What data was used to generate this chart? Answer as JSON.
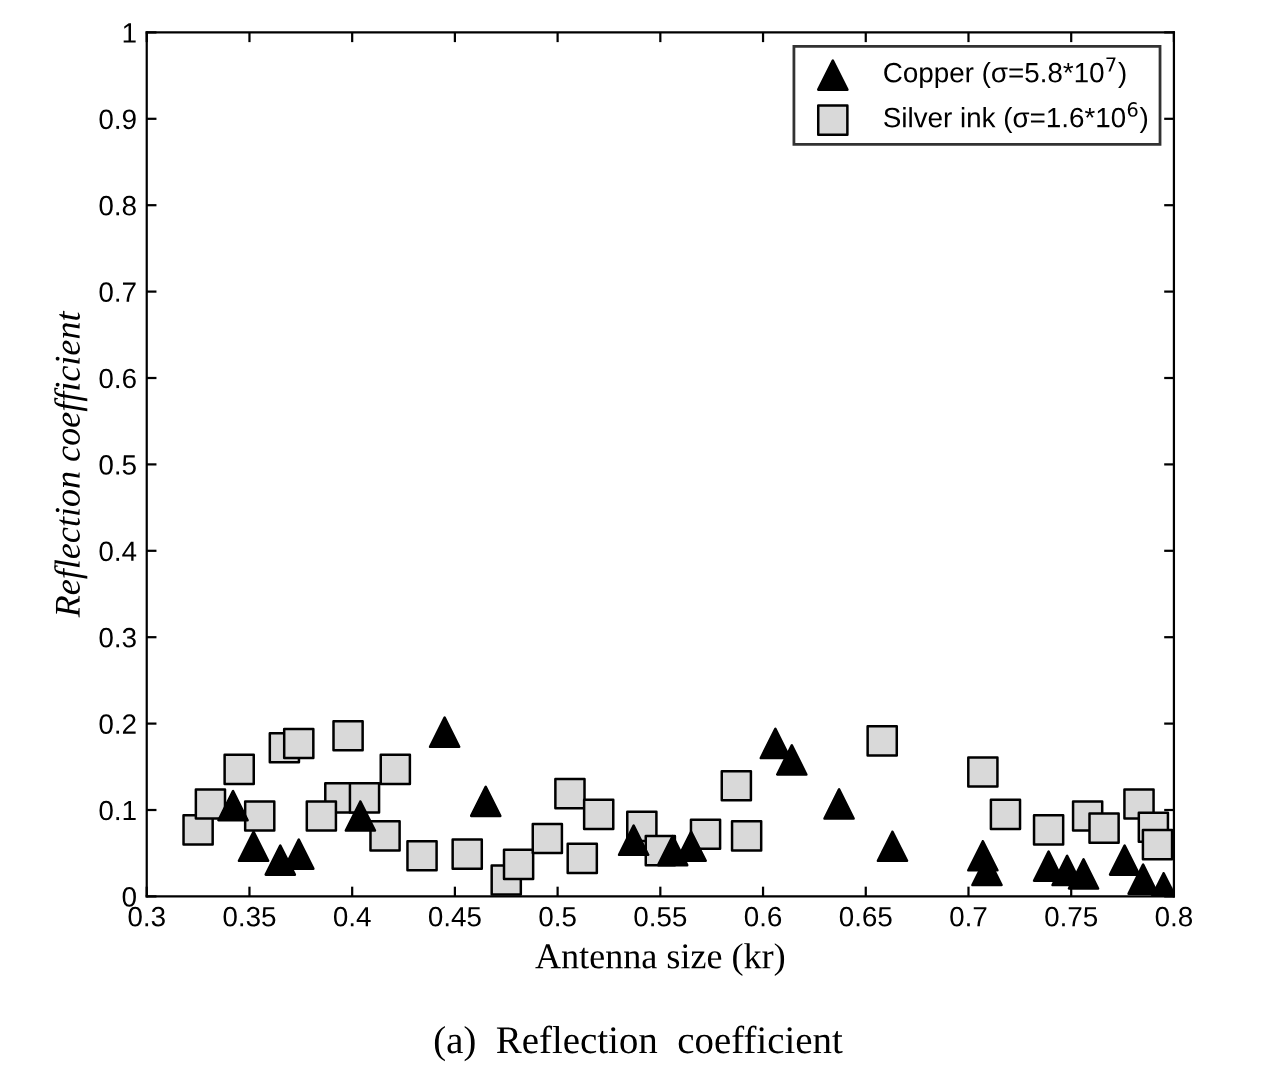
{
  "chart_data": {
    "type": "scatter",
    "xlabel": "Antenna size (kr)",
    "ylabel": "Reflection coefficient",
    "annotations": [
      "(a)  Reflection  coefficient"
    ],
    "xlim": [
      0.3,
      0.8
    ],
    "xticks": [
      0.3,
      0.35,
      0.4,
      0.45,
      0.5,
      0.55,
      0.6,
      0.65,
      0.7,
      0.75,
      0.8
    ],
    "ylim": [
      0,
      1
    ],
    "yticks": [
      0,
      0.1,
      0.2,
      0.3,
      0.4,
      0.5,
      0.6,
      0.7,
      0.8,
      0.9,
      1
    ],
    "grid": false,
    "legend": "top right",
    "series": [
      {
        "name": "Copper (σ=5.8*10$^{7}$)",
        "color": "#000000",
        "marker": "triangle",
        "x": [
          0.342,
          0.352,
          0.365,
          0.374,
          0.404,
          0.445,
          0.465,
          0.537,
          0.556,
          0.565,
          0.606,
          0.614,
          0.637,
          0.663,
          0.707,
          0.709,
          0.739,
          0.748,
          0.756,
          0.776,
          0.785,
          0.795
        ],
        "values": [
          0.105,
          0.058,
          0.042,
          0.049,
          0.093,
          0.19,
          0.11,
          0.065,
          0.053,
          0.058,
          0.177,
          0.158,
          0.107,
          0.058,
          0.047,
          0.03,
          0.035,
          0.03,
          0.026,
          0.042,
          0.02,
          0.01
        ]
      },
      {
        "name": "Silver ink (σ=1.6*10$^{6}$)",
        "color": "#d9d9d9",
        "marker": "square",
        "x": [
          0.325,
          0.331,
          0.345,
          0.355,
          0.367,
          0.374,
          0.398,
          0.394,
          0.406,
          0.385,
          0.421,
          0.416,
          0.434,
          0.456,
          0.475,
          0.481,
          0.495,
          0.506,
          0.52,
          0.512,
          0.541,
          0.55,
          0.572,
          0.592,
          0.587,
          0.658,
          0.707,
          0.718,
          0.739,
          0.758,
          0.766,
          0.783,
          0.79,
          0.792
        ],
        "values": [
          0.077,
          0.107,
          0.147,
          0.093,
          0.172,
          0.177,
          0.186,
          0.114,
          0.114,
          0.093,
          0.147,
          0.07,
          0.047,
          0.049,
          0.019,
          0.037,
          0.067,
          0.119,
          0.095,
          0.044,
          0.081,
          0.053,
          0.072,
          0.07,
          0.128,
          0.18,
          0.144,
          0.095,
          0.077,
          0.093,
          0.079,
          0.107,
          0.08,
          0.06
        ]
      }
    ]
  }
}
